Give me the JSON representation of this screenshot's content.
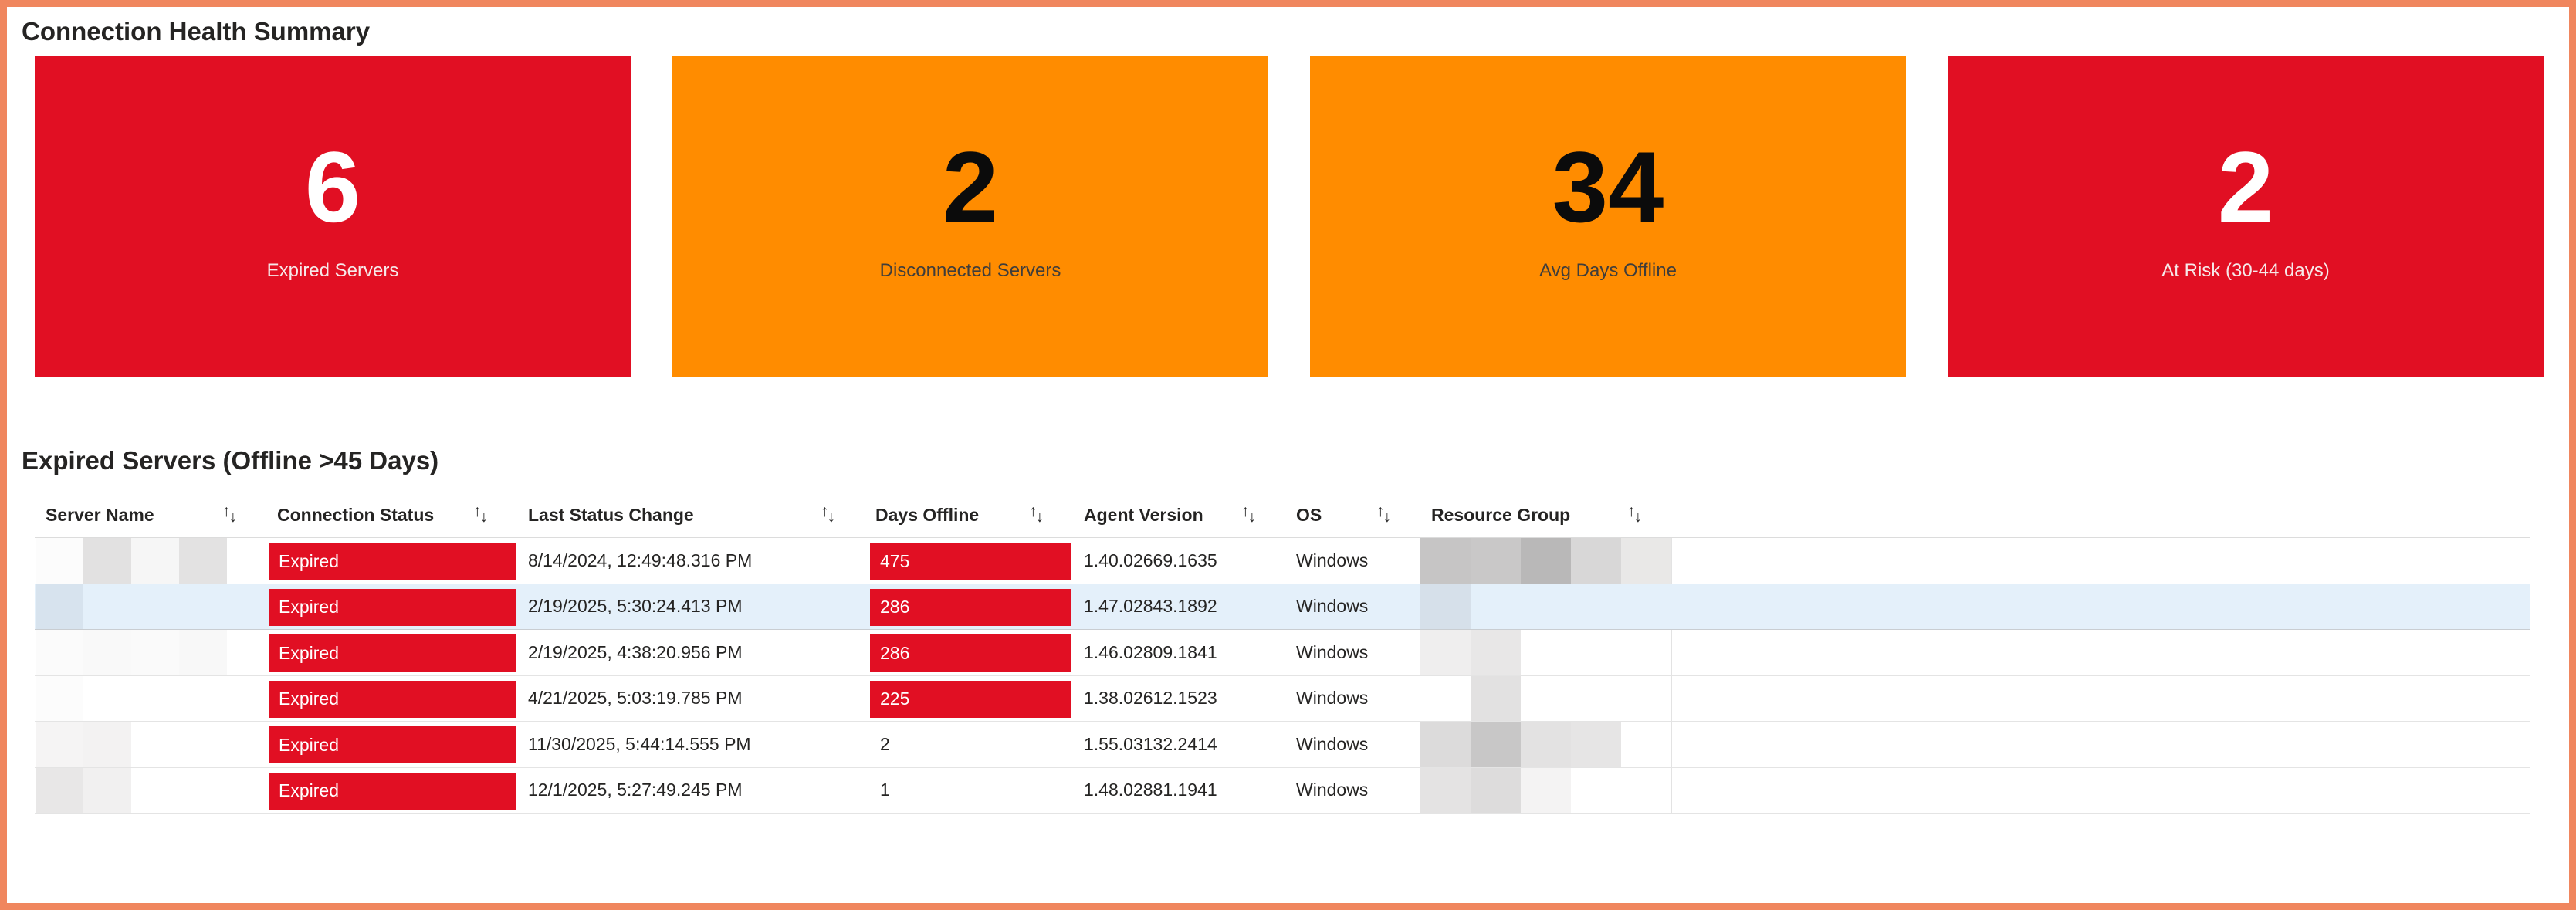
{
  "page": {
    "border_color": "#F0865E",
    "background": "#FFFFFF",
    "text_color": "#252423",
    "gridline_color": "#E4E4E4"
  },
  "summary": {
    "title": "Connection Health Summary",
    "cards": [
      {
        "value": "6",
        "label": "Expired Servers",
        "bg": "#E10F23",
        "value_color": "#FFFFFF",
        "label_color": "#F6E9E9"
      },
      {
        "value": "2",
        "label": "Disconnected Servers",
        "bg": "#FF8C00",
        "value_color": "#0B0B0B",
        "label_color": "#3F3D3B"
      },
      {
        "value": "34",
        "label": "Avg Days Offline",
        "bg": "#FF8C00",
        "value_color": "#0B0B0B",
        "label_color": "#3F3D3B"
      },
      {
        "value": "2",
        "label": "At Risk (30-44 days)",
        "bg": "#E10F23",
        "value_color": "#FFFFFF",
        "label_color": "#F6E9E9"
      }
    ]
  },
  "table": {
    "title": "Expired Servers (Offline >45 Days)",
    "icons": {
      "sort_up": "↑",
      "sort_down": "↓"
    },
    "columns": [
      {
        "label": "Server Name"
      },
      {
        "label": "Connection Status"
      },
      {
        "label": "Last Status Change"
      },
      {
        "label": "Days Offline"
      },
      {
        "label": "Agent Version"
      },
      {
        "label": "OS"
      },
      {
        "label": "Resource Group"
      }
    ],
    "status_chip_color": "#E10F23",
    "days_chip_color": "#E10F23",
    "selected_row_color": "#E4F0FA",
    "rows": [
      {
        "server_redacted": [
          "#FCFCFC",
          "#E2E1E1",
          "#F6F6F6",
          "#E3E2E2"
        ],
        "status": "Expired",
        "last_status_change": "8/14/2024, 12:49:48.316 PM",
        "days_offline": "475",
        "days_chip": true,
        "agent_version": "1.40.02669.1635",
        "os": "Windows",
        "resource_redacted": [
          "#C6C5C5",
          "#C9C8C8",
          "#B9B8B8",
          "#D8D7D7",
          "#E9E8E7"
        ],
        "selected": false
      },
      {
        "server_redacted": [
          "#D7E3EE"
        ],
        "status": "Expired",
        "last_status_change": "2/19/2025, 5:30:24.413 PM",
        "days_offline": "286",
        "days_chip": true,
        "agent_version": "1.47.02843.1892",
        "os": "Windows",
        "resource_redacted": [
          "#D6E0EA"
        ],
        "selected": true
      },
      {
        "server_redacted": [
          "#FBFBFB",
          "#F9F9F9",
          "#FAFAFA",
          "#F8F8F8"
        ],
        "status": "Expired",
        "last_status_change": "2/19/2025, 4:38:20.956 PM",
        "days_offline": "286",
        "days_chip": true,
        "agent_version": "1.46.02809.1841",
        "os": "Windows",
        "resource_redacted": [
          "#EFEEEE",
          "#E8E7E7"
        ],
        "selected": false
      },
      {
        "server_redacted": [
          "#FCFCFC"
        ],
        "status": "Expired",
        "last_status_change": "4/21/2025, 5:03:19.785 PM",
        "days_offline": "225",
        "days_chip": true,
        "agent_version": "1.38.02612.1523",
        "os": "Windows",
        "resource_redacted": [
          "",
          "#E2E1E1"
        ],
        "selected": false
      },
      {
        "server_redacted": [
          "#F5F4F4",
          "#F3F2F2"
        ],
        "status": "Expired",
        "last_status_change": "11/30/2025, 5:44:14.555 PM",
        "days_offline": "2",
        "days_chip": false,
        "agent_version": "1.55.03132.2414",
        "os": "Windows",
        "resource_redacted": [
          "#DCDBDB",
          "#C8C7C7",
          "#E3E2E2",
          "#E6E5E5"
        ],
        "selected": false
      },
      {
        "server_redacted": [
          "#E8E7E7",
          "#F1F0F0"
        ],
        "status": "Expired",
        "last_status_change": "12/1/2025, 5:27:49.245 PM",
        "days_offline": "1",
        "days_chip": false,
        "agent_version": "1.48.02881.1941",
        "os": "Windows",
        "resource_redacted": [
          "#E4E3E3",
          "#DDDCDC",
          "#F4F3F3"
        ],
        "selected": false
      }
    ]
  }
}
